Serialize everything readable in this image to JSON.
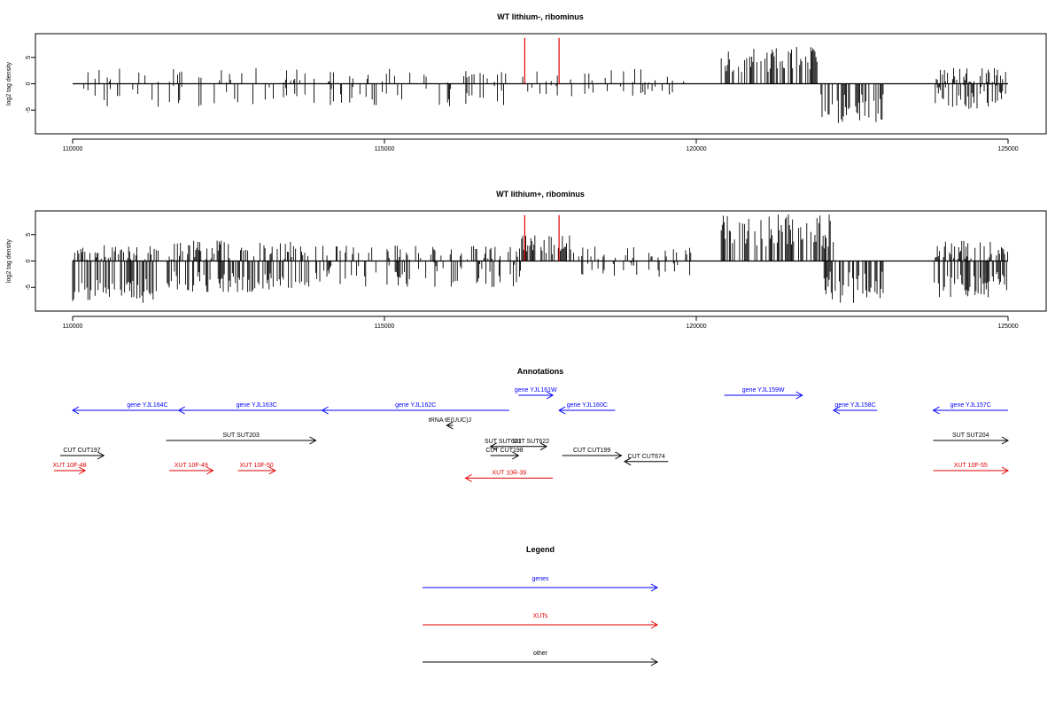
{
  "chart_data": [
    {
      "type": "bar",
      "title": "WT lithium-, ribominus",
      "ylabel": "log2 tag density",
      "xlim": [
        110000,
        125000
      ],
      "ylim": [
        -9.5,
        9.5
      ],
      "xticks": [
        110000,
        115000,
        120000,
        125000
      ],
      "yticks": [
        -5,
        0,
        5
      ],
      "grid": false,
      "highlight_color": "#e00000",
      "bar_color": "#000000",
      "highlights": [
        {
          "x": 117250,
          "y": 8.7
        },
        {
          "x": 117800,
          "y": 8.7
        }
      ],
      "clusters": [
        {
          "x": [
            110000,
            117000
          ],
          "pos": [
            0,
            3
          ],
          "neg": [
            0,
            4.5
          ],
          "density": 0.3
        },
        {
          "x": [
            117200,
            119800
          ],
          "pos": [
            0,
            3
          ],
          "neg": [
            0,
            2.5
          ],
          "density": 0.3
        },
        {
          "x": [
            120400,
            122000
          ],
          "pos": [
            2,
            7
          ],
          "neg": [
            0,
            0
          ],
          "density": 1.0
        },
        {
          "x": [
            122000,
            123000
          ],
          "pos": [
            0,
            0
          ],
          "neg": [
            2,
            7.5
          ],
          "density": 1.0
        },
        {
          "x": [
            123800,
            125000
          ],
          "pos": [
            0,
            3
          ],
          "neg": [
            0,
            5
          ],
          "density": 0.9
        }
      ]
    },
    {
      "type": "bar",
      "title": "WT lithium+, ribominus",
      "ylabel": "log2 tag density",
      "xlim": [
        110000,
        125000
      ],
      "ylim": [
        -9.5,
        9.5
      ],
      "xticks": [
        110000,
        115000,
        120000,
        125000
      ],
      "yticks": [
        -5,
        0,
        5
      ],
      "grid": false,
      "highlight_color": "#e00000",
      "bar_color": "#000000",
      "highlights": [
        {
          "x": 117250,
          "y": 8.7
        },
        {
          "x": 117800,
          "y": 8.7
        }
      ],
      "clusters": [
        {
          "x": [
            110000,
            111400
          ],
          "pos": [
            0,
            3
          ],
          "neg": [
            3,
            8
          ],
          "density": 0.9
        },
        {
          "x": [
            111500,
            113800
          ],
          "pos": [
            0,
            4
          ],
          "neg": [
            2,
            6
          ],
          "density": 0.9
        },
        {
          "x": [
            113800,
            117200
          ],
          "pos": [
            0,
            3
          ],
          "neg": [
            0,
            5
          ],
          "density": 0.5
        },
        {
          "x": [
            117200,
            118000
          ],
          "pos": [
            1,
            5
          ],
          "neg": [
            0,
            0
          ],
          "density": 1.0
        },
        {
          "x": [
            118000,
            120000
          ],
          "pos": [
            0,
            3
          ],
          "neg": [
            0,
            3
          ],
          "density": 0.4
        },
        {
          "x": [
            120400,
            122200
          ],
          "pos": [
            2,
            9
          ],
          "neg": [
            0,
            0
          ],
          "density": 1.0
        },
        {
          "x": [
            122000,
            123000
          ],
          "pos": [
            0,
            0
          ],
          "neg": [
            2,
            8
          ],
          "density": 1.0
        },
        {
          "x": [
            123800,
            125000
          ],
          "pos": [
            0,
            4
          ],
          "neg": [
            2,
            7
          ],
          "density": 1.0
        }
      ]
    }
  ],
  "annotations": {
    "title": "Annotations",
    "features": [
      {
        "label": "gene YJL164C",
        "x1": 110000,
        "x2": 112400,
        "lane": 0,
        "dir": "left",
        "color": "#0000ff",
        "cls": "gene"
      },
      {
        "label": "gene YJL163C",
        "x1": 111700,
        "x2": 114200,
        "lane": 0,
        "dir": "left",
        "color": "#0000ff",
        "cls": "gene"
      },
      {
        "label": "gene YJL162C",
        "x1": 114000,
        "x2": 117000,
        "lane": 0,
        "dir": "left",
        "color": "#0000ff",
        "cls": "gene"
      },
      {
        "label": "gene YJL161W",
        "x1": 117150,
        "x2": 117700,
        "lane": -1,
        "dir": "right",
        "color": "#0000ff",
        "cls": "gene"
      },
      {
        "label": "gene YJL160C",
        "x1": 117800,
        "x2": 118700,
        "lane": 0,
        "dir": "left",
        "color": "#0000ff",
        "cls": "gene"
      },
      {
        "label": "gene YJL159W",
        "x1": 120450,
        "x2": 121700,
        "lane": -1,
        "dir": "right",
        "color": "#0000ff",
        "cls": "gene"
      },
      {
        "label": "gene YJL158C",
        "x1": 122200,
        "x2": 122900,
        "lane": 0,
        "dir": "left",
        "color": "#0000ff",
        "cls": "gene"
      },
      {
        "label": "gene YJL157C",
        "x1": 123800,
        "x2": 125000,
        "lane": 0,
        "dir": "left",
        "color": "#0000ff",
        "cls": "gene"
      },
      {
        "label": "tRNA tE(UUC)J",
        "x1": 116000,
        "x2": 116100,
        "lane": 1,
        "dir": "left",
        "color": "#000000",
        "cls": "other"
      },
      {
        "label": "SUT SUT203",
        "x1": 111500,
        "x2": 113900,
        "lane": 2,
        "dir": "right",
        "color": "#000000",
        "cls": "other"
      },
      {
        "label": "SUT SUT204",
        "x1": 123800,
        "x2": 125000,
        "lane": 2,
        "dir": "right",
        "color": "#000000",
        "cls": "other"
      },
      {
        "label": "SUT SUT621",
        "x1": 116700,
        "x2": 117100,
        "lane": 2.4,
        "dir": "left",
        "color": "#000000",
        "cls": "other"
      },
      {
        "label": "SUT SUT622",
        "x1": 117100,
        "x2": 117600,
        "lane": 2.4,
        "dir": "right",
        "color": "#000000",
        "cls": "other"
      },
      {
        "label": "CUT CUT197",
        "x1": 109800,
        "x2": 110500,
        "lane": 3,
        "dir": "right",
        "color": "#000000",
        "cls": "other"
      },
      {
        "label": "CUT CUT198",
        "x1": 116700,
        "x2": 117150,
        "lane": 3,
        "dir": "right",
        "color": "#000000",
        "cls": "other"
      },
      {
        "label": "CUT CUT199",
        "x1": 117850,
        "x2": 118800,
        "lane": 3,
        "dir": "right",
        "color": "#000000",
        "cls": "other"
      },
      {
        "label": "CUT CUT674",
        "x1": 118850,
        "x2": 119550,
        "lane": 3.4,
        "dir": "left",
        "color": "#000000",
        "cls": "other"
      },
      {
        "label": "XUT 10F-48",
        "x1": 109700,
        "x2": 110200,
        "lane": 4,
        "dir": "right",
        "color": "#e00000",
        "cls": "xut"
      },
      {
        "label": "XUT 10F-49",
        "x1": 111550,
        "x2": 112250,
        "lane": 4,
        "dir": "right",
        "color": "#e00000",
        "cls": "xut"
      },
      {
        "label": "XUT 10F-50",
        "x1": 112650,
        "x2": 113250,
        "lane": 4,
        "dir": "right",
        "color": "#e00000",
        "cls": "xut"
      },
      {
        "label": "XUT 10R-39",
        "x1": 116300,
        "x2": 117700,
        "lane": 4.5,
        "dir": "left",
        "color": "#e00000",
        "cls": "xut"
      },
      {
        "label": "XUT 10F-55",
        "x1": 123800,
        "x2": 125000,
        "lane": 4,
        "dir": "right",
        "color": "#e00000",
        "cls": "xut"
      }
    ]
  },
  "legend": {
    "title": "Legend",
    "items": [
      {
        "label": "genes",
        "color": "#0000ff"
      },
      {
        "label": "XUTs",
        "color": "#e00000"
      },
      {
        "label": "other",
        "color": "#000000"
      }
    ]
  }
}
